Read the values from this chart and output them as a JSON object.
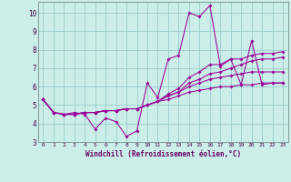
{
  "xlabel": "Windchill (Refroidissement éolien,°C)",
  "bg_color": "#cceee8",
  "line_color": "#990099",
  "grid_color": "#99cccc",
  "xlim": [
    -0.5,
    23.5
  ],
  "ylim": [
    3,
    10.6
  ],
  "yticks": [
    3,
    4,
    5,
    6,
    7,
    8,
    9,
    10
  ],
  "xticks": [
    0,
    1,
    2,
    3,
    4,
    5,
    6,
    7,
    8,
    9,
    10,
    11,
    12,
    13,
    14,
    15,
    16,
    17,
    18,
    19,
    20,
    21,
    22,
    23
  ],
  "series": [
    [
      5.3,
      4.6,
      4.5,
      4.6,
      4.5,
      3.7,
      4.3,
      4.1,
      3.3,
      3.6,
      6.2,
      5.4,
      7.5,
      7.7,
      10.0,
      9.8,
      10.4,
      7.1,
      7.5,
      6.1,
      8.5,
      6.1,
      6.2,
      6.2
    ],
    [
      5.3,
      4.6,
      4.5,
      4.5,
      4.6,
      4.6,
      4.7,
      4.7,
      4.8,
      4.8,
      5.0,
      5.2,
      5.6,
      5.9,
      6.5,
      6.8,
      7.2,
      7.2,
      7.5,
      7.5,
      7.7,
      7.8,
      7.8,
      7.9
    ],
    [
      5.3,
      4.6,
      4.5,
      4.5,
      4.6,
      4.6,
      4.7,
      4.7,
      4.8,
      4.8,
      5.0,
      5.2,
      5.5,
      5.7,
      6.2,
      6.4,
      6.7,
      6.8,
      7.0,
      7.2,
      7.4,
      7.5,
      7.5,
      7.6
    ],
    [
      5.3,
      4.6,
      4.5,
      4.5,
      4.6,
      4.6,
      4.7,
      4.7,
      4.8,
      4.8,
      5.0,
      5.2,
      5.5,
      5.7,
      6.0,
      6.2,
      6.4,
      6.5,
      6.6,
      6.7,
      6.8,
      6.8,
      6.8,
      6.8
    ],
    [
      5.3,
      4.6,
      4.5,
      4.5,
      4.6,
      4.6,
      4.7,
      4.7,
      4.8,
      4.8,
      5.0,
      5.2,
      5.3,
      5.5,
      5.7,
      5.8,
      5.9,
      6.0,
      6.0,
      6.1,
      6.1,
      6.2,
      6.2,
      6.2
    ]
  ]
}
